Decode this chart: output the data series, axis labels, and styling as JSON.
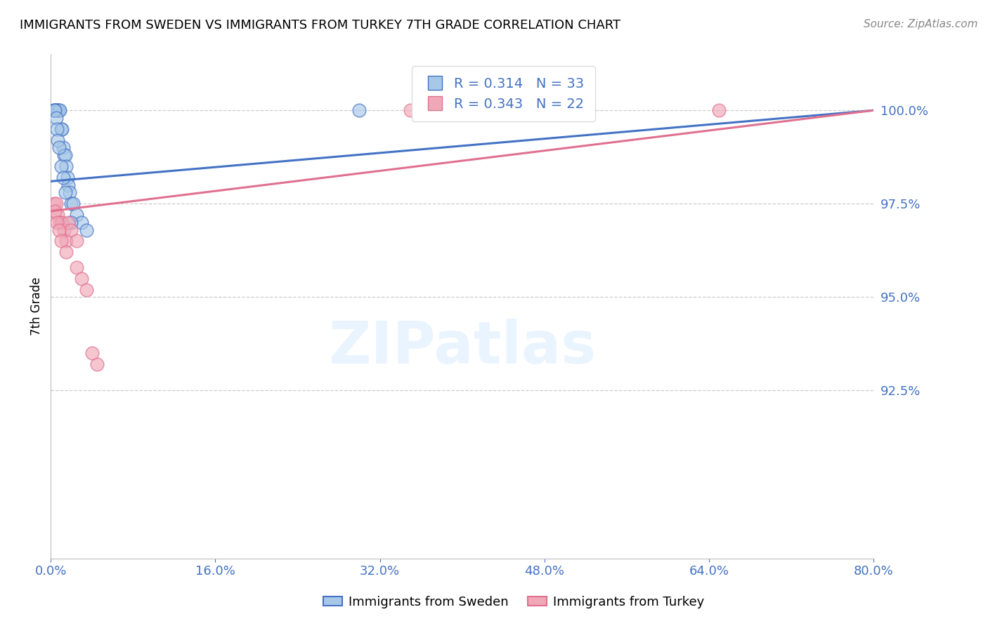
{
  "title": "IMMIGRANTS FROM SWEDEN VS IMMIGRANTS FROM TURKEY 7TH GRADE CORRELATION CHART",
  "source": "Source: ZipAtlas.com",
  "ylabel": "7th Grade",
  "legend_label_blue": "Immigrants from Sweden",
  "legend_label_pink": "Immigrants from Turkey",
  "R_blue": 0.314,
  "N_blue": 33,
  "R_pink": 0.343,
  "N_pink": 22,
  "xmin": 0.0,
  "xmax": 80.0,
  "ymin": 88.0,
  "ymax": 101.5,
  "yticks": [
    92.5,
    95.0,
    97.5,
    100.0
  ],
  "xticks": [
    0.0,
    16.0,
    32.0,
    48.0,
    64.0,
    80.0
  ],
  "xtick_labels": [
    "0.0%",
    "16.0%",
    "32.0%",
    "48.0%",
    "64.0%",
    "80.0%"
  ],
  "ytick_labels": [
    "92.5%",
    "95.0%",
    "97.5%",
    "100.0%"
  ],
  "color_blue": "#a8c8e8",
  "color_pink": "#f0a8b8",
  "color_blue_line": "#4472c4",
  "color_pink_line": "#e07090",
  "color_axis_labels": "#4472c4",
  "watermark_text": "ZIPatlas",
  "blue_scatter_x": [
    0.3,
    0.4,
    0.5,
    0.6,
    0.7,
    0.8,
    0.9,
    1.0,
    1.1,
    1.2,
    1.3,
    1.4,
    1.5,
    1.6,
    1.7,
    1.8,
    2.0,
    2.2,
    2.5,
    3.0,
    0.3,
    0.4,
    0.5,
    0.6,
    0.7,
    0.8,
    1.0,
    1.2,
    1.4,
    2.0,
    3.5,
    30.0,
    50.0
  ],
  "blue_scatter_y": [
    100.0,
    100.0,
    100.0,
    100.0,
    100.0,
    100.0,
    100.0,
    99.5,
    99.5,
    99.0,
    98.8,
    98.8,
    98.5,
    98.2,
    98.0,
    97.8,
    97.5,
    97.5,
    97.2,
    97.0,
    100.0,
    100.0,
    99.8,
    99.5,
    99.2,
    99.0,
    98.5,
    98.2,
    97.8,
    97.0,
    96.8,
    100.0,
    100.0
  ],
  "pink_scatter_x": [
    0.3,
    0.5,
    0.7,
    0.9,
    1.1,
    1.3,
    1.5,
    1.7,
    2.0,
    2.5,
    0.4,
    0.6,
    0.8,
    1.0,
    1.5,
    2.5,
    3.0,
    3.5,
    4.5,
    4.0,
    65.0,
    35.0
  ],
  "pink_scatter_y": [
    97.5,
    97.5,
    97.2,
    97.0,
    97.0,
    96.8,
    96.5,
    97.0,
    96.8,
    96.5,
    97.3,
    97.0,
    96.8,
    96.5,
    96.2,
    95.8,
    95.5,
    95.2,
    93.2,
    93.5,
    100.0,
    100.0
  ]
}
